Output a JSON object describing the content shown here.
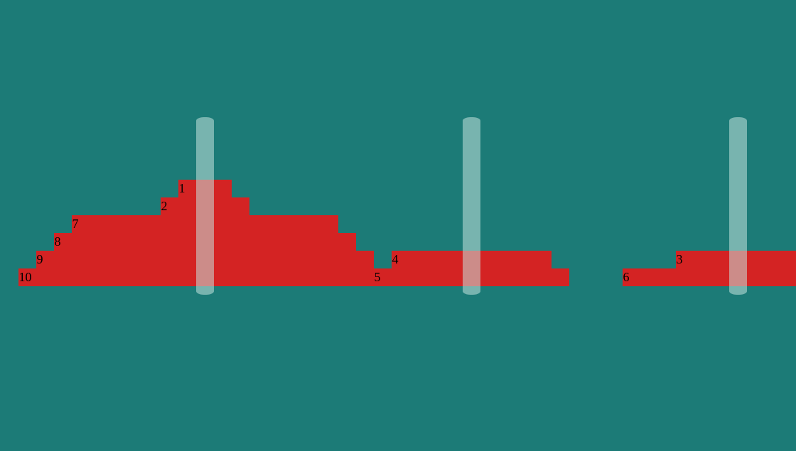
{
  "colors": {
    "background": "#1c7b77",
    "disk": "#d42323",
    "peg": "#c4e3df"
  },
  "game": {
    "pegs": [
      {
        "disks": [
          10,
          9,
          8,
          7,
          2,
          1
        ]
      },
      {
        "disks": [
          5,
          4
        ]
      },
      {
        "disks": [
          6,
          3
        ]
      }
    ]
  }
}
